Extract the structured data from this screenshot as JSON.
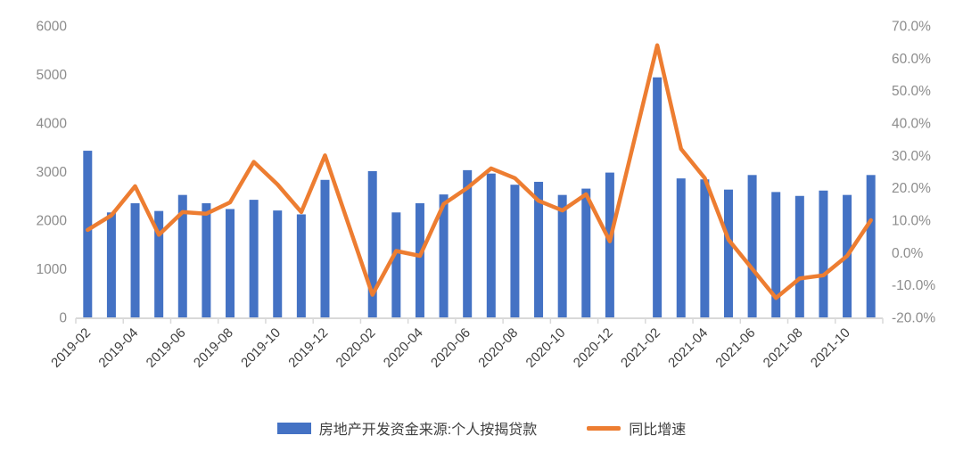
{
  "chart_data": {
    "type": "bar",
    "title": "",
    "categories": [
      "2019-02",
      "2019-03",
      "2019-04",
      "2019-05",
      "2019-06",
      "2019-07",
      "2019-08",
      "2019-09",
      "2019-10",
      "2019-11",
      "2019-12",
      "2020-01",
      "2020-02",
      "2020-03",
      "2020-04",
      "2020-05",
      "2020-06",
      "2020-07",
      "2020-08",
      "2020-09",
      "2020-10",
      "2020-11",
      "2020-12",
      "2021-01",
      "2021-02",
      "2021-03",
      "2021-04",
      "2021-05",
      "2021-06",
      "2021-07",
      "2021-08",
      "2021-09",
      "2021-10",
      "2021-11"
    ],
    "x_tick_labels": [
      "2019-02",
      "2019-04",
      "2019-06",
      "2019-08",
      "2019-10",
      "2019-12",
      "2020-02",
      "2020-04",
      "2020-06",
      "2020-08",
      "2020-10",
      "2020-12",
      "2021-02",
      "2021-04",
      "2021-06",
      "2021-08",
      "2021-10"
    ],
    "x_label_interval": 2,
    "series": [
      {
        "name": "房地产开发资金来源:个人按揭贷款",
        "type": "bar",
        "axis": "left",
        "values": [
          3430,
          2160,
          2350,
          2190,
          2520,
          2350,
          2230,
          2420,
          2200,
          2120,
          2830,
          null,
          3010,
          2160,
          2350,
          2530,
          3030,
          2960,
          2730,
          2790,
          2520,
          2650,
          2980,
          null,
          4940,
          2860,
          2840,
          2630,
          2930,
          2580,
          2500,
          2610,
          2520,
          2930
        ]
      },
      {
        "name": "同比增速",
        "type": "line",
        "axis": "right",
        "values": [
          7,
          11.5,
          20.5,
          5.5,
          12.5,
          12,
          15.5,
          28,
          21,
          12.5,
          30,
          null,
          -13,
          0.5,
          -1,
          15,
          20,
          26,
          23,
          16,
          13,
          18,
          3.5,
          null,
          64,
          32,
          23,
          4,
          -5,
          -14,
          -8,
          -7,
          -1,
          10
        ]
      }
    ],
    "left_axis": {
      "min": 0,
      "max": 6000,
      "step": 1000,
      "tick_labels": [
        "6000",
        "5000",
        "4000",
        "3000",
        "2000",
        "1000",
        "0"
      ]
    },
    "right_axis": {
      "min": -20,
      "max": 70,
      "step": 10,
      "tick_labels": [
        "70.0%",
        "60.0%",
        "50.0%",
        "40.0%",
        "30.0%",
        "20.0%",
        "10.0%",
        "0.0%",
        "-10.0%",
        "-20.0%"
      ]
    },
    "grid": false,
    "legend_position": "bottom"
  },
  "colors": {
    "bar": "#4472C4",
    "line": "#ED7D31",
    "y_axis_text": "#8C8C8C",
    "x_axis_text": "#3F3F3F",
    "axis_line": "#D9D9D9",
    "legend_text": "#3F3F3F",
    "background": "#FFFFFF"
  }
}
